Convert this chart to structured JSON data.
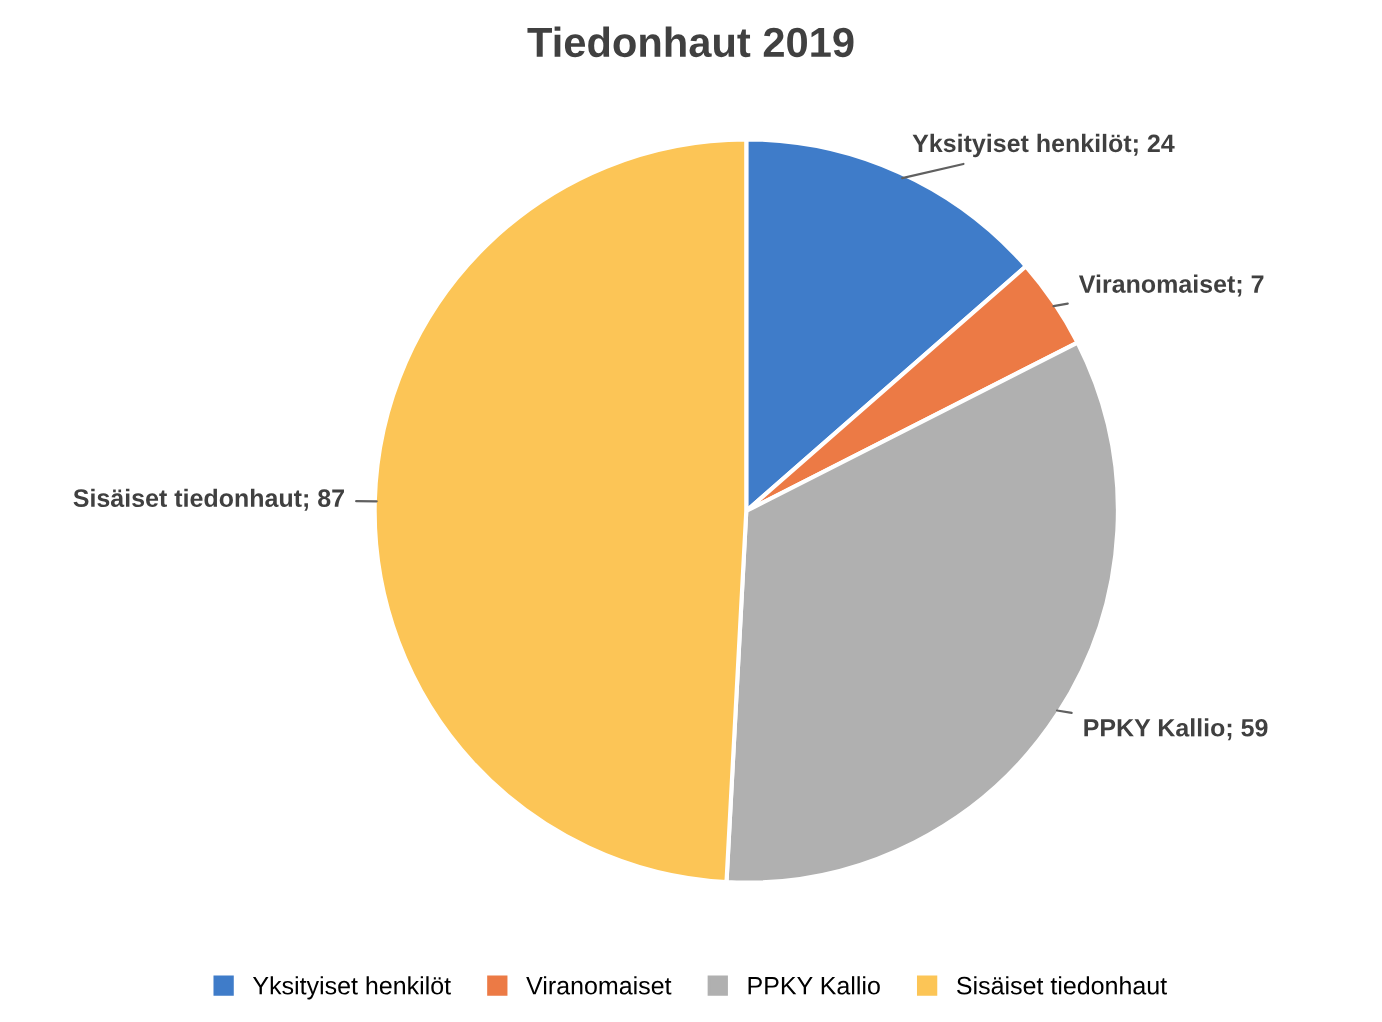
{
  "chart_data": {
    "type": "pie",
    "title": "Tiedonhaut 2019",
    "categories": [
      "Yksityiset henkilöt",
      "Viranomaiset",
      "PPKY Kallio",
      "Sisäiset tiedonhaut"
    ],
    "values": [
      24,
      7,
      59,
      87
    ],
    "colors": [
      "#3f7cc9",
      "#ec7a45",
      "#b0b0b0",
      "#fcc556"
    ],
    "value_labels": [
      "Yksityiset henkilöt; 24",
      "Viranomaiset; 7",
      "PPKY Kallio; 59",
      "Sisäiset tiedonhaut; 87"
    ],
    "legend": "bottom"
  }
}
